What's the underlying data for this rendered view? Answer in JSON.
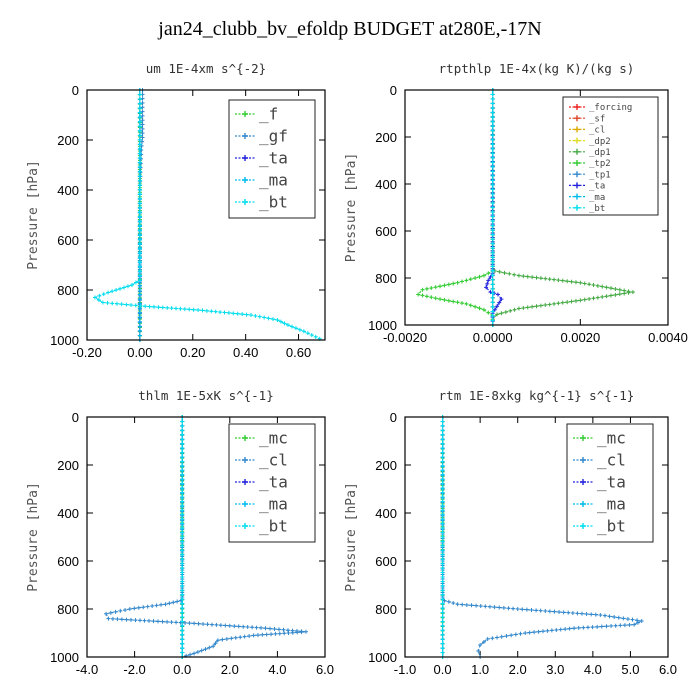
{
  "title": "jan24_clubb_bv_efoldp  BUDGET at280E,-17N",
  "chart_data": [
    {
      "type": "line",
      "title": "um  1E-4xm s^{-2}",
      "ylabel": "Pressure [hPa]",
      "xlim": [
        -0.2,
        0.7
      ],
      "ylim": [
        1000,
        0
      ],
      "xticks": [
        -0.2,
        0.0,
        0.2,
        0.4,
        0.6
      ],
      "xtick_labels": [
        "-0.20",
        "0.00",
        "0.20",
        "0.40",
        "0.60"
      ],
      "yticks": [
        0,
        200,
        400,
        600,
        800,
        1000
      ],
      "ytick_labels": [
        "0",
        "200",
        "400",
        "600",
        "800",
        "1000"
      ],
      "legend_position": "top-right",
      "series": [
        {
          "name": "_f",
          "color": "#33cc33",
          "x": [
            0.0,
            0.0,
            0.0,
            0.0,
            0.0,
            0.0,
            0.0,
            0.0
          ],
          "y": [
            0,
            150,
            300,
            500,
            700,
            850,
            950,
            1000
          ]
        },
        {
          "name": "_gf",
          "color": "#3388cc",
          "x": [
            0.01,
            0.01,
            0.005,
            0.0,
            0.0,
            0.0
          ],
          "y": [
            0,
            190,
            240,
            400,
            700,
            1000
          ]
        },
        {
          "name": "_ta",
          "color": "#2222dd",
          "x": [
            0.0,
            0.0,
            0.0,
            0.0
          ],
          "y": [
            0,
            400,
            800,
            1000
          ]
        },
        {
          "name": "_ma",
          "color": "#00bbee",
          "x": [
            0.0,
            0.0,
            0.0,
            0.0
          ],
          "y": [
            0,
            400,
            800,
            1000
          ]
        },
        {
          "name": "_bt",
          "color": "#00ddee",
          "x": [
            0.0,
            0.0,
            -0.03,
            -0.12,
            -0.17,
            -0.14,
            0.02,
            0.22,
            0.42,
            0.52,
            0.56,
            0.62,
            0.68
          ],
          "y": [
            0,
            760,
            780,
            810,
            830,
            850,
            865,
            880,
            900,
            920,
            940,
            965,
            995
          ]
        }
      ]
    },
    {
      "type": "line",
      "title": "rtpthlp  1E-4x(kg K)/(kg s)",
      "ylabel": "Pressure [hPa]",
      "xlim": [
        -0.002,
        0.004
      ],
      "ylim": [
        1000,
        0
      ],
      "xticks": [
        -0.002,
        0.0,
        0.002,
        0.004
      ],
      "xtick_labels": [
        "-0.0020",
        "0.0000",
        "0.0020",
        "0.0040"
      ],
      "yticks": [
        0,
        200,
        400,
        600,
        800,
        1000
      ],
      "ytick_labels": [
        "0",
        "200",
        "400",
        "600",
        "800",
        "1000"
      ],
      "legend_position": "top-right",
      "series": [
        {
          "name": "_forcing",
          "color": "#ee2222",
          "x": [
            0.0,
            0.0
          ],
          "y": [
            0,
            1000
          ]
        },
        {
          "name": "_sf",
          "color": "#dd4422",
          "x": [
            0.0,
            0.0
          ],
          "y": [
            0,
            1000
          ]
        },
        {
          "name": "_cl",
          "color": "#ddaa00",
          "x": [
            0.0,
            0.0
          ],
          "y": [
            0,
            1000
          ]
        },
        {
          "name": "_dp2",
          "color": "#dddd22",
          "x": [
            0.0,
            0.0
          ],
          "y": [
            0,
            1000
          ]
        },
        {
          "name": "_dp1",
          "color": "#44aa44",
          "x": [
            0.0,
            0.0,
            5e-05,
            0.0006,
            0.002,
            0.0032,
            0.002,
            0.0006,
            0.0001,
            0.0,
            0.0
          ],
          "y": [
            0,
            760,
            770,
            790,
            820,
            860,
            895,
            930,
            955,
            975,
            1000
          ]
        },
        {
          "name": "_tp2",
          "color": "#33cc33",
          "x": [
            0.0,
            0.0,
            -0.0002,
            -0.0008,
            -0.0016,
            -0.0017,
            -0.0012,
            -0.0006,
            -0.0002,
            0.0,
            0.0
          ],
          "y": [
            0,
            770,
            790,
            820,
            850,
            870,
            890,
            910,
            935,
            960,
            1000
          ]
        },
        {
          "name": "_tp1",
          "color": "#3388cc",
          "x": [
            0.0,
            0.0
          ],
          "y": [
            0,
            1000
          ]
        },
        {
          "name": "_ta",
          "color": "#2222dd",
          "x": [
            0.0,
            0.0,
            -0.0001,
            -0.00015,
            -5e-05,
            0.00012,
            0.0002,
            0.0001,
            0.0,
            0.0
          ],
          "y": [
            0,
            780,
            810,
            840,
            860,
            870,
            890,
            920,
            950,
            1000
          ]
        },
        {
          "name": "_ma",
          "color": "#00bbee",
          "x": [
            0.0,
            0.0
          ],
          "y": [
            0,
            1000
          ]
        },
        {
          "name": "_bt",
          "color": "#00ddee",
          "x": [
            0.0,
            0.0
          ],
          "y": [
            0,
            1000
          ]
        }
      ]
    },
    {
      "type": "line",
      "title": "thlm  1E-5xK s^{-1}",
      "ylabel": "Pressure [hPa]",
      "xlim": [
        -4.0,
        6.0
      ],
      "ylim": [
        1000,
        0
      ],
      "xticks": [
        -4,
        -2,
        0,
        2,
        4,
        6
      ],
      "xtick_labels": [
        "-4.0",
        "-2.0",
        "0.0",
        "2.0",
        "4.0",
        "6.0"
      ],
      "yticks": [
        0,
        200,
        400,
        600,
        800,
        1000
      ],
      "ytick_labels": [
        "0",
        "200",
        "400",
        "600",
        "800",
        "1000"
      ],
      "legend_position": "top-right",
      "series": [
        {
          "name": "_mc",
          "color": "#33cc33",
          "x": [
            0.0,
            0.0,
            0.0,
            0.0
          ],
          "y": [
            0,
            400,
            800,
            1000
          ]
        },
        {
          "name": "_cl",
          "color": "#3388cc",
          "x": [
            0.0,
            0.0,
            -0.05,
            -0.7,
            -2.2,
            -3.2,
            -3.1,
            0.5,
            3.5,
            5.2,
            3.0,
            1.5,
            1.3,
            0.5,
            0.0
          ],
          "y": [
            0,
            750,
            765,
            780,
            800,
            820,
            840,
            860,
            880,
            895,
            910,
            930,
            955,
            985,
            1000
          ]
        },
        {
          "name": "_ta",
          "color": "#2222dd",
          "x": [
            0.0,
            0.0,
            0.0
          ],
          "y": [
            0,
            500,
            1000
          ]
        },
        {
          "name": "_ma",
          "color": "#00bbee",
          "x": [
            0.0,
            0.0,
            0.0
          ],
          "y": [
            0,
            500,
            1000
          ]
        },
        {
          "name": "_bt",
          "color": "#00ddee",
          "x": [
            0.0,
            0.0,
            0.0
          ],
          "y": [
            0,
            500,
            1000
          ]
        }
      ]
    },
    {
      "type": "line",
      "title": "rtm  1E-8xkg kg^{-1} s^{-1}",
      "ylabel": "Pressure [hPa]",
      "xlim": [
        -1.0,
        6.0
      ],
      "ylim": [
        1000,
        0
      ],
      "xticks": [
        -1,
        0,
        1,
        2,
        3,
        4,
        5,
        6
      ],
      "xtick_labels": [
        "-1.0",
        "0.0",
        "1.0",
        "2.0",
        "3.0",
        "4.0",
        "5.0",
        "6.0"
      ],
      "yticks": [
        0,
        200,
        400,
        600,
        800,
        1000
      ],
      "ytick_labels": [
        "0",
        "200",
        "400",
        "600",
        "800",
        "1000"
      ],
      "legend_position": "top-right",
      "series": [
        {
          "name": "_mc",
          "color": "#33cc33",
          "x": [
            0.0,
            0.0,
            0.0,
            0.0
          ],
          "y": [
            0,
            400,
            800,
            1000
          ]
        },
        {
          "name": "_cl",
          "color": "#3388cc",
          "x": [
            0.0,
            0.0,
            0.05,
            0.4,
            2.0,
            4.2,
            5.3,
            5.1,
            3.5,
            2.2,
            1.2,
            1.0,
            0.95,
            1.0
          ],
          "y": [
            0,
            750,
            765,
            780,
            800,
            825,
            850,
            865,
            880,
            900,
            925,
            950,
            975,
            1000
          ]
        },
        {
          "name": "_ta",
          "color": "#2222dd",
          "x": [
            0.0,
            0.0,
            0.0
          ],
          "y": [
            0,
            500,
            1000
          ]
        },
        {
          "name": "_ma",
          "color": "#00bbee",
          "x": [
            0.0,
            0.0,
            0.0
          ],
          "y": [
            0,
            500,
            1000
          ]
        },
        {
          "name": "_bt",
          "color": "#00ddee",
          "x": [
            0.0,
            0.0,
            0.0
          ],
          "y": [
            0,
            500,
            1000
          ]
        }
      ]
    }
  ]
}
